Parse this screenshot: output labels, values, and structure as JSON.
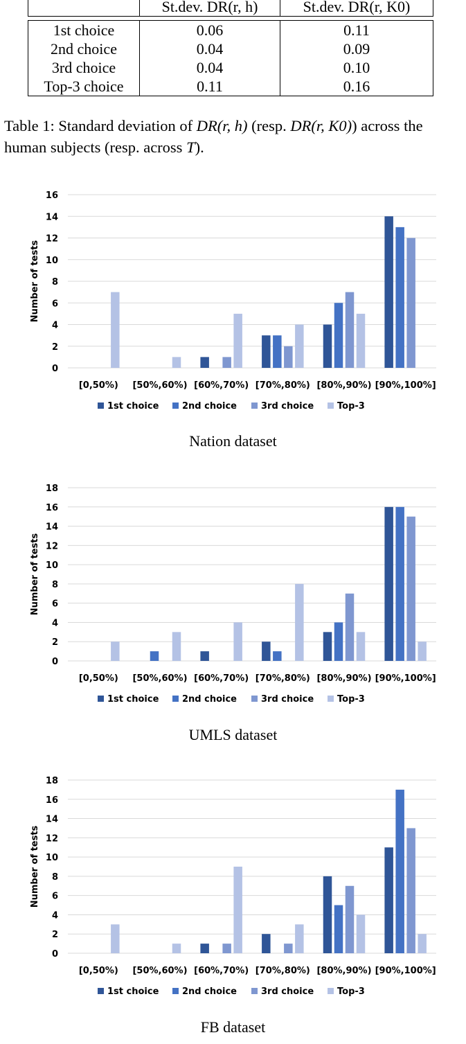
{
  "table": {
    "headers": [
      "",
      "St.dev. DR(r, h)",
      "St.dev. DR(r, K0)"
    ],
    "rows": [
      {
        "label": "1st choice",
        "v1": "0.06",
        "v2": "0.11"
      },
      {
        "label": "2nd choice",
        "v1": "0.04",
        "v2": "0.09"
      },
      {
        "label": "3rd choice",
        "v1": "0.04",
        "v2": "0.10"
      },
      {
        "label": "Top-3 choice",
        "v1": "0.11",
        "v2": "0.16"
      }
    ]
  },
  "caption": {
    "prefix": "Table 1: Standard deviation of",
    "m1": "DR(r, h)",
    "mid": "(resp.",
    "m2": "DR(r, K0)",
    "mid2": ") across the human subjects (resp. across",
    "m3": "T",
    "suffix": ")."
  },
  "colors": {
    "1st choice": "#2f5597",
    "2nd choice": "#4472c4",
    "3rd choice": "#7f97d0",
    "Top-3": "#b4c2e5",
    "grid": "#d9d9d9"
  },
  "chart_data": [
    {
      "type": "bar",
      "title": "Nation dataset",
      "ylabel": "Number of tests",
      "ylim": [
        0,
        16
      ],
      "yticks": [
        0,
        2,
        4,
        6,
        8,
        10,
        12,
        14,
        16
      ],
      "categories": [
        "[0,50%)",
        "[50%,60%)",
        "[60%,70%)",
        "[70%,80%)",
        "[80%,90%)",
        "[90%,100%]"
      ],
      "series": [
        {
          "name": "1st choice",
          "values": [
            0,
            0,
            1,
            3,
            4,
            14
          ]
        },
        {
          "name": "2nd choice",
          "values": [
            0,
            0,
            0,
            3,
            6,
            13
          ]
        },
        {
          "name": "3rd choice",
          "values": [
            0,
            0,
            1,
            2,
            7,
            12
          ]
        },
        {
          "name": "Top-3",
          "values": [
            7,
            1,
            5,
            4,
            5,
            0
          ]
        }
      ]
    },
    {
      "type": "bar",
      "title": "UMLS dataset",
      "ylabel": "Number of tests",
      "ylim": [
        0,
        18
      ],
      "yticks": [
        0,
        2,
        4,
        6,
        8,
        10,
        12,
        14,
        16,
        18
      ],
      "categories": [
        "[0,50%)",
        "[50%,60%)",
        "[60%,70%)",
        "[70%,80%)",
        "[80%,90%)",
        "[90%,100%]"
      ],
      "series": [
        {
          "name": "1st choice",
          "values": [
            0,
            0,
            1,
            2,
            3,
            16
          ]
        },
        {
          "name": "2nd choice",
          "values": [
            0,
            1,
            0,
            1,
            4,
            16
          ]
        },
        {
          "name": "3rd choice",
          "values": [
            0,
            0,
            0,
            0,
            7,
            15
          ]
        },
        {
          "name": "Top-3",
          "values": [
            2,
            3,
            4,
            8,
            3,
            2
          ]
        }
      ]
    },
    {
      "type": "bar",
      "title": "FB dataset",
      "ylabel": "Number of tests",
      "ylim": [
        0,
        18
      ],
      "yticks": [
        0,
        2,
        4,
        6,
        8,
        10,
        12,
        14,
        16,
        18
      ],
      "categories": [
        "[0,50%)",
        "[50%,60%)",
        "[60%,70%)",
        "[70%,80%)",
        "[80%,90%)",
        "[90%,100%]"
      ],
      "series": [
        {
          "name": "1st choice",
          "values": [
            0,
            0,
            1,
            2,
            8,
            11
          ]
        },
        {
          "name": "2nd choice",
          "values": [
            0,
            0,
            0,
            0,
            5,
            17
          ]
        },
        {
          "name": "3rd choice",
          "values": [
            0,
            0,
            1,
            1,
            7,
            13
          ]
        },
        {
          "name": "Top-3",
          "values": [
            3,
            1,
            9,
            3,
            4,
            2
          ]
        }
      ]
    }
  ]
}
